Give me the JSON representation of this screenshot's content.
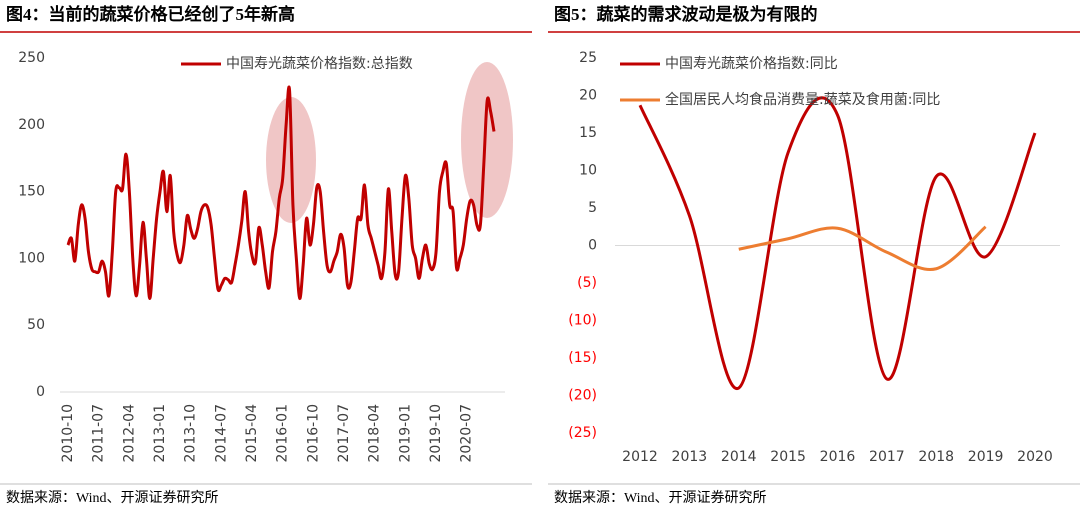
{
  "chart_data": [
    {
      "type": "line",
      "title": "图4：当前的蔬菜价格已经创了5年新高",
      "smooth": true,
      "legend": "upper center",
      "categories": [
        "2010-10",
        null,
        null,
        null,
        null,
        null,
        null,
        null,
        null,
        "2011-07",
        null,
        null,
        null,
        null,
        null,
        null,
        null,
        null,
        "2012-04",
        null,
        null,
        null,
        null,
        null,
        null,
        null,
        null,
        "2013-01",
        null,
        null,
        null,
        null,
        null,
        null,
        null,
        null,
        "2013-10",
        null,
        null,
        null,
        null,
        null,
        null,
        null,
        null,
        "2014-07",
        null,
        null,
        null,
        null,
        null,
        null,
        null,
        null,
        "2015-04",
        null,
        null,
        null,
        null,
        null,
        null,
        null,
        null,
        "2016-01",
        null,
        null,
        null,
        null,
        null,
        null,
        null,
        null,
        "2016-10",
        null,
        null,
        null,
        null,
        null,
        null,
        null,
        null,
        "2017-07",
        null,
        null,
        null,
        null,
        null,
        null,
        null,
        null,
        "2018-04",
        null,
        null,
        null,
        null,
        null,
        null,
        null,
        null,
        "2019-01",
        null,
        null,
        null,
        null,
        null,
        null,
        null,
        null,
        "2019-10",
        null,
        null,
        null,
        null,
        null,
        null,
        null,
        null,
        "2020-07",
        null,
        null,
        null,
        null,
        null,
        null,
        null,
        null
      ],
      "series": [
        {
          "name": "中国寿光蔬菜价格指数:总指数",
          "color": "#c00000",
          "values": [
            110,
            115,
            98,
            125,
            140,
            130,
            105,
            92,
            90,
            90,
            98,
            90,
            72,
            105,
            150,
            153,
            152,
            178,
            150,
            100,
            72,
            95,
            127,
            100,
            70,
            100,
            130,
            150,
            165,
            135,
            162,
            120,
            103,
            97,
            110,
            132,
            122,
            115,
            122,
            135,
            140,
            138,
            125,
            100,
            77,
            80,
            85,
            84,
            82,
            95,
            110,
            128,
            150,
            120,
            102,
            97,
            123,
            110,
            90,
            78,
            105,
            120,
            145,
            160,
            200,
            226,
            140,
            100,
            70,
            95,
            130,
            110,
            125,
            153,
            150,
            120,
            95,
            90,
            98,
            105,
            118,
            108,
            80,
            82,
            105,
            130,
            130,
            155,
            125,
            115,
            105,
            95,
            85,
            105,
            152,
            120,
            88,
            90,
            130,
            162,
            145,
            110,
            100,
            85,
            100,
            110,
            96,
            92,
            105,
            150,
            165,
            171,
            140,
            135,
            93,
            100,
            110,
            130,
            143,
            140,
            125,
            125,
            170,
            218,
            210,
            195
          ]
        }
      ],
      "ylim": [
        0,
        250
      ],
      "yticks": [
        0,
        50,
        100,
        150,
        200,
        250
      ],
      "source": "数据来源：Wind、开源证券研究所"
    },
    {
      "type": "line",
      "title": "图5：蔬菜的需求波动是极为有限的",
      "smooth": true,
      "legend": "upper left",
      "categories": [
        "2012",
        "2013",
        "2014",
        "2015",
        "2016",
        "2017",
        "2018",
        "2019",
        "2020"
      ],
      "series": [
        {
          "name": "中国寿光蔬菜价格指数:同比",
          "color": "#c00000",
          "values": [
            18.7,
            4.0,
            -19,
            12.4,
            17.4,
            -17.8,
            9.2,
            -1.5,
            15.0
          ]
        },
        {
          "name": "全国居民人均食品消费量:蔬菜及食用菌:同比",
          "color": "#ed7d31",
          "values": [
            null,
            null,
            -0.5,
            0.9,
            2.3,
            -0.9,
            -3.1,
            2.5,
            null
          ]
        }
      ],
      "ylim": [
        -25,
        25
      ],
      "yticks": [
        {
          "value": -25,
          "label": "(25)"
        },
        {
          "value": -20,
          "label": "(20)"
        },
        {
          "value": -15,
          "label": "(15)"
        },
        {
          "value": -10,
          "label": "(10)"
        },
        {
          "value": -5,
          "label": "(5)"
        },
        0,
        5,
        10,
        15,
        20,
        25
      ],
      "negative_tick_color": "#ff0000",
      "source": "数据来源：Wind、开源证券研究所"
    }
  ]
}
